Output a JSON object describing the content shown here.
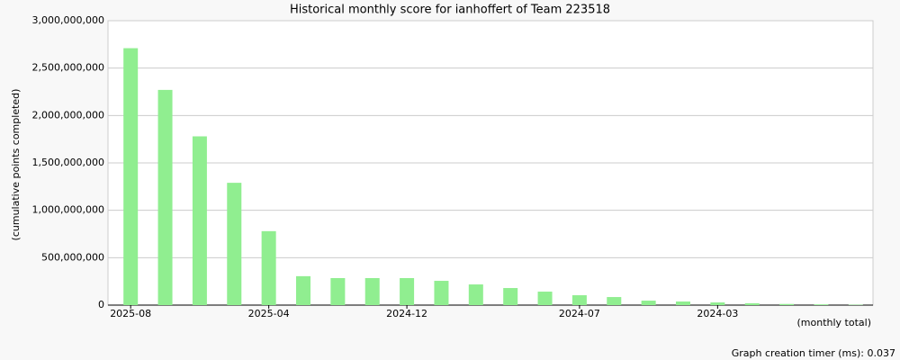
{
  "chart_data": {
    "type": "bar",
    "title": "Historical monthly score for ianhoffert of Team 223518",
    "y_label": "(cumulative points completed)",
    "x_note": "(monthly total)",
    "categories": [
      "2025-08",
      null,
      null,
      null,
      "2025-04",
      null,
      null,
      null,
      "2024-12",
      null,
      null,
      null,
      null,
      "2024-07",
      null,
      null,
      null,
      "2024-03",
      null,
      null,
      null,
      null
    ],
    "values": [
      2710000000,
      2270000000,
      1780000000,
      1290000000,
      780000000,
      305000000,
      285000000,
      285000000,
      285000000,
      256000000,
      218000000,
      180000000,
      142000000,
      104000000,
      85000000,
      47000000,
      38000000,
      28000000,
      19000000,
      12000000,
      8000000,
      4000000
    ],
    "color": "#90ee90",
    "ylim": [
      0,
      3000000000
    ],
    "yticks": [
      0,
      {
        "value": 500000000,
        "label": "500,000,000"
      },
      {
        "value": 1000000000,
        "label": "1,000,000,000"
      },
      {
        "value": 1500000000,
        "label": "1,500,000,000"
      },
      {
        "value": 2000000000,
        "label": "2,000,000,000"
      },
      {
        "value": 2500000000,
        "label": "2,500,000,000"
      },
      {
        "value": 3000000000,
        "label": "3,000,000,000"
      }
    ],
    "grid": true
  },
  "footer": "Graph creation timer (ms): 0.037"
}
